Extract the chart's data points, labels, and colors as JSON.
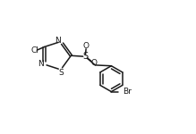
{
  "bg_color": "#ffffff",
  "line_color": "#1a1a1a",
  "line_width": 1.1,
  "font_size": 6.5,
  "fig_width": 2.19,
  "fig_height": 1.5,
  "dpi": 100,
  "xlim": [
    0,
    10
  ],
  "ylim": [
    0,
    7
  ]
}
